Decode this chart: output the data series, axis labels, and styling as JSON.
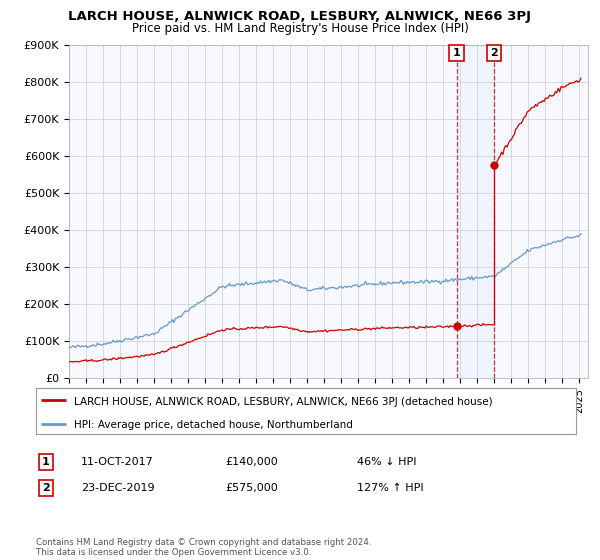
{
  "title": "LARCH HOUSE, ALNWICK ROAD, LESBURY, ALNWICK, NE66 3PJ",
  "subtitle": "Price paid vs. HM Land Registry's House Price Index (HPI)",
  "hpi_legend": "HPI: Average price, detached house, Northumberland",
  "house_legend": "LARCH HOUSE, ALNWICK ROAD, LESBURY, ALNWICK, NE66 3PJ (detached house)",
  "ylim": [
    0,
    900000
  ],
  "yticks": [
    0,
    100000,
    200000,
    300000,
    400000,
    500000,
    600000,
    700000,
    800000,
    900000
  ],
  "ytick_labels": [
    "£0",
    "£100K",
    "£200K",
    "£300K",
    "£400K",
    "£500K",
    "£600K",
    "£700K",
    "£800K",
    "£900K"
  ],
  "sale1_date": 2017.78,
  "sale1_price": 140000,
  "sale1_label": "1",
  "sale2_date": 2019.98,
  "sale2_price": 575000,
  "sale2_label": "2",
  "house_color": "#cc0000",
  "hpi_color": "#6699cc",
  "annotation1_date": "11-OCT-2017",
  "annotation1_price": "£140,000",
  "annotation1_hpi": "46% ↓ HPI",
  "annotation2_date": "23-DEC-2019",
  "annotation2_price": "£575,000",
  "annotation2_hpi": "127% ↑ HPI",
  "footnote": "Contains HM Land Registry data © Crown copyright and database right 2024.\nThis data is licensed under the Open Government Licence v3.0.",
  "bg_color": "#ffffff",
  "grid_color": "#cccccc",
  "shade_color": "#ddeeff"
}
